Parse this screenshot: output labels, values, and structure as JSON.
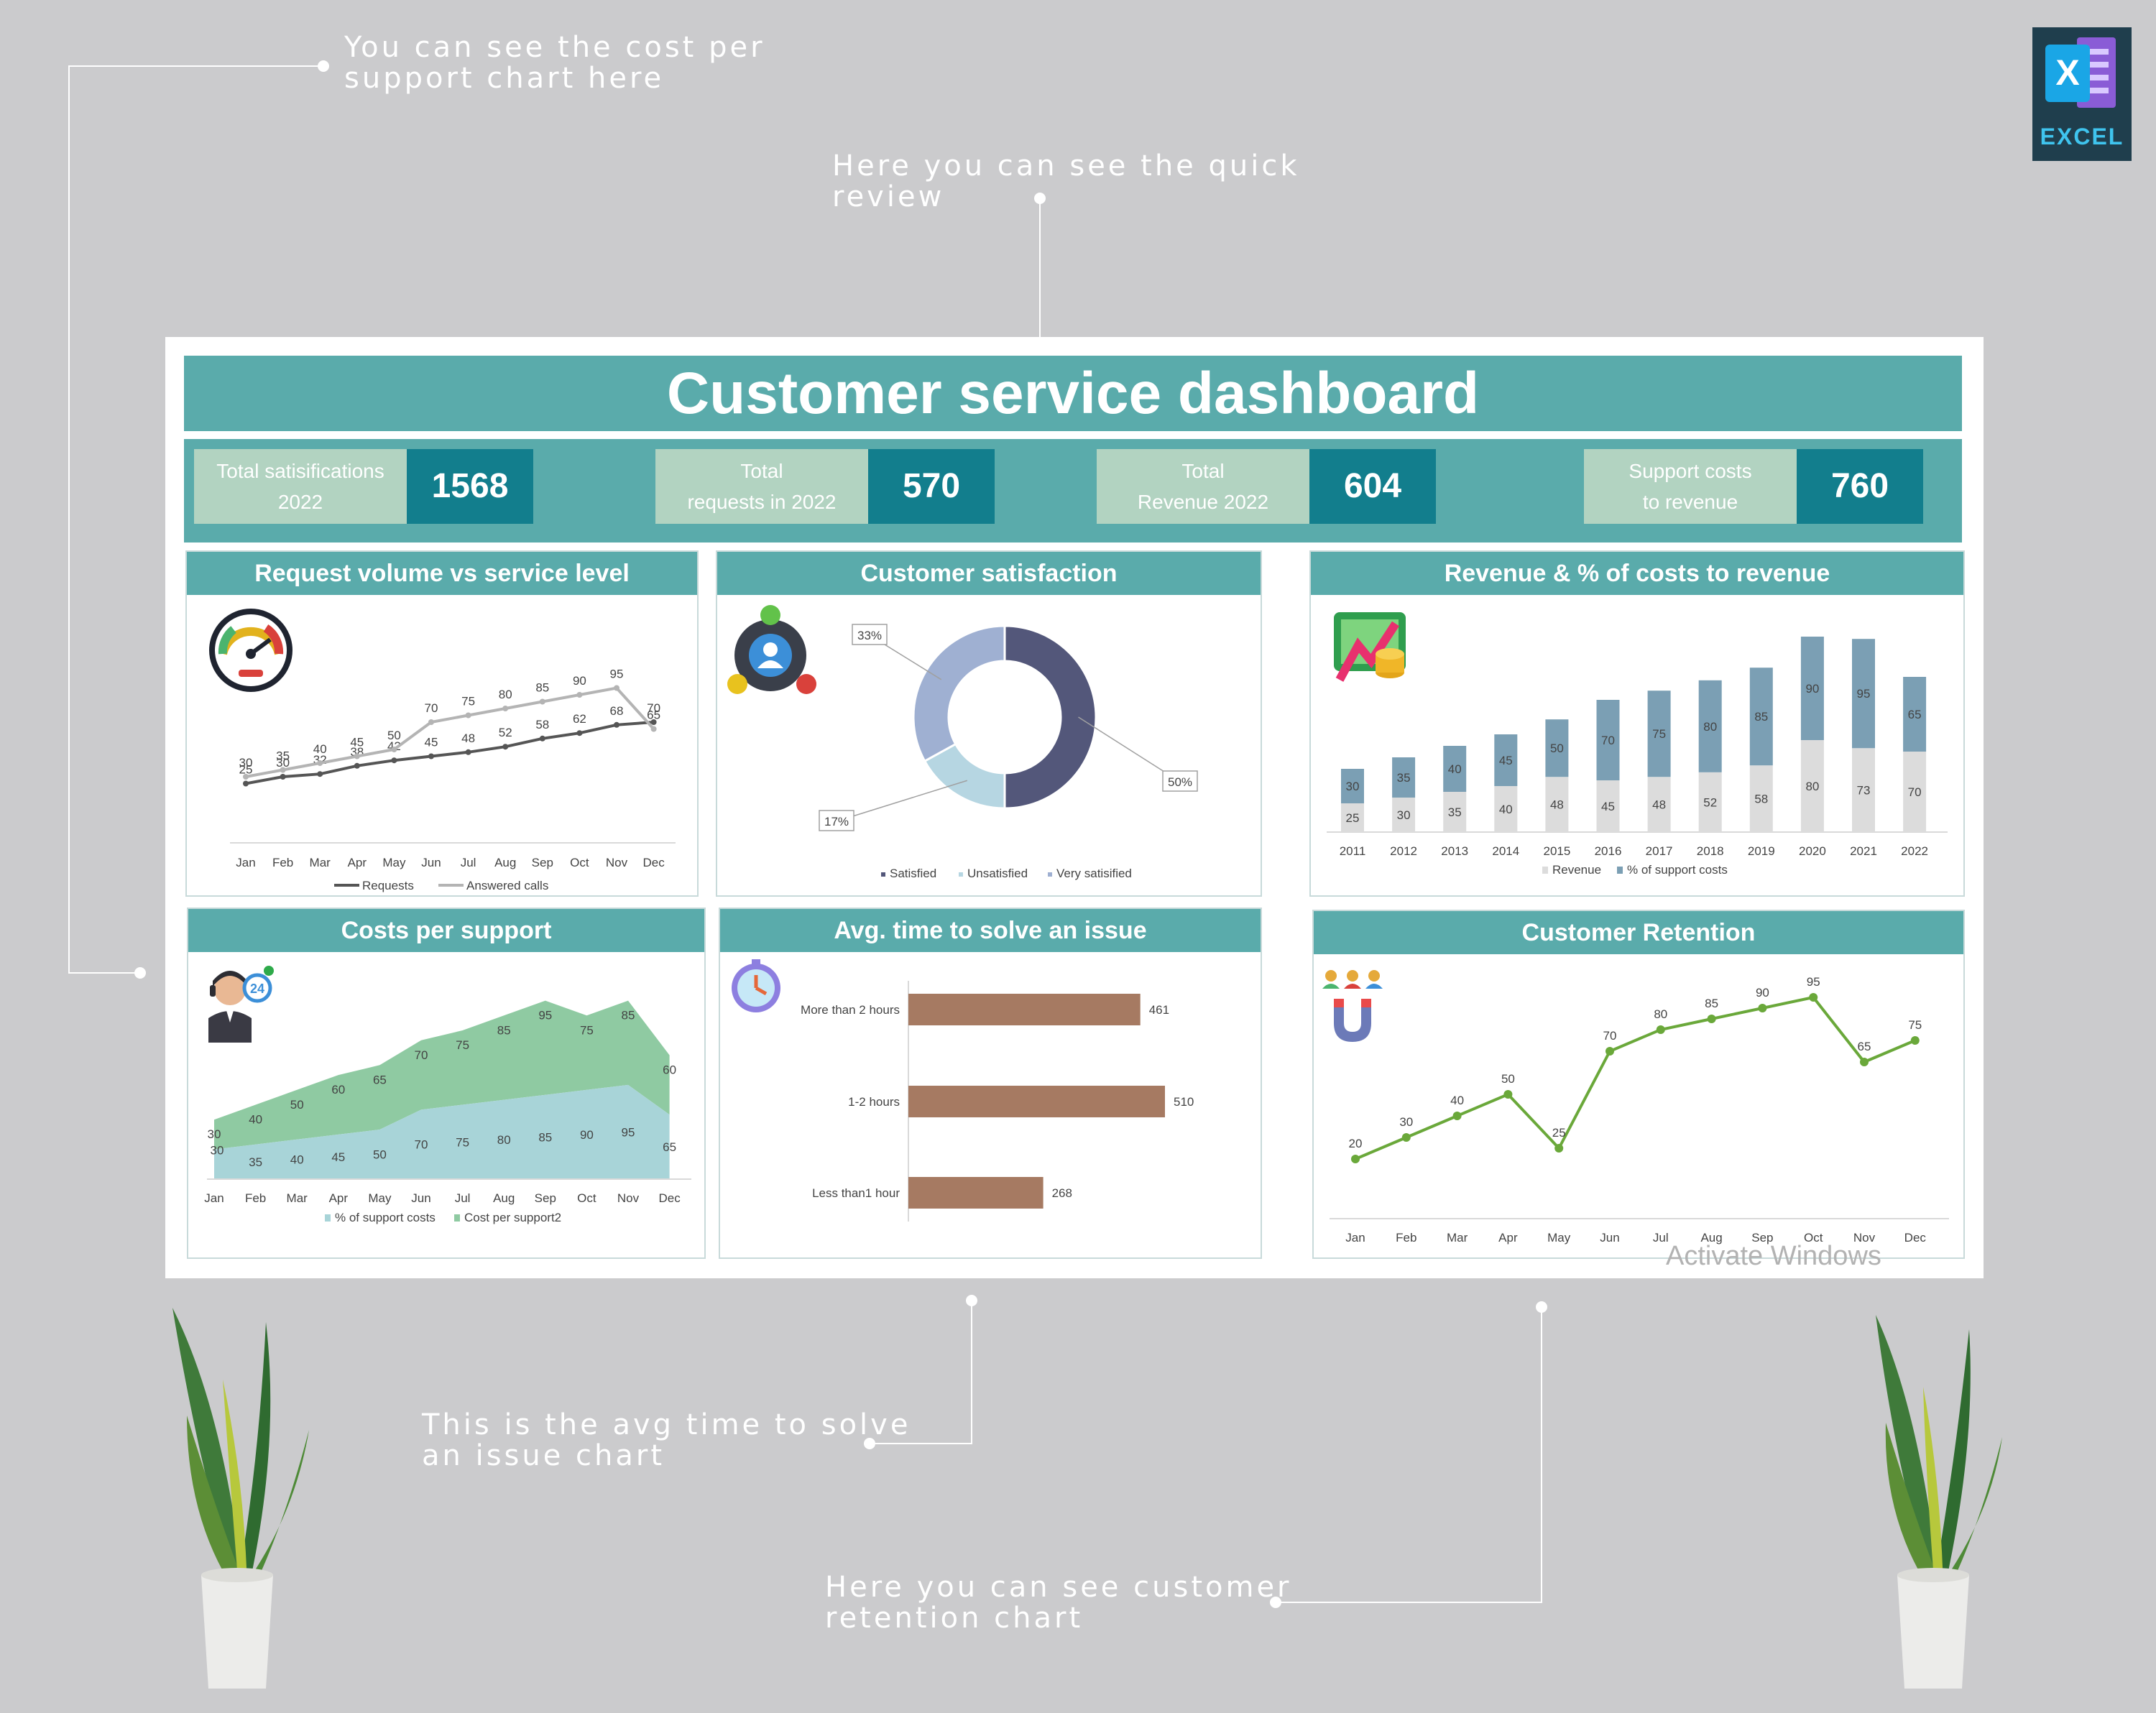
{
  "callouts": {
    "cost_per_support": "You can see the cost per\nsupport chart here",
    "quick_review": "Here you can see the quick\nreview",
    "avg_time": "This is the avg time to solve\nan issue chart",
    "retention": "Here you can see customer\nretention chart"
  },
  "excel_logo": {
    "letter": "X",
    "word": "EXCEL"
  },
  "dashboard": {
    "title": "Customer service dashboard",
    "kpis": [
      {
        "label": "Total satisifications\n2022",
        "value": "1568"
      },
      {
        "label": "Total\nrequests in 2022",
        "value": "570"
      },
      {
        "label": "Total\nRevenue 2022",
        "value": "604"
      },
      {
        "label": "Support costs\nto revenue",
        "value": "760"
      }
    ],
    "panels": {
      "request_volume": "Request volume vs service level",
      "satisfaction": "Customer satisfaction",
      "revenue": "Revenue & % of costs to revenue",
      "costs_support": "Costs per support",
      "avg_time": "Avg. time to solve an issue",
      "retention": "Customer Retention"
    }
  },
  "watermark": "Activate Windows",
  "colors": {
    "teal": "#5aabab",
    "kpi_value_bg": "#127e8d",
    "kpi_label_bg": "#b2d3c1",
    "requests_line": "#555555",
    "answered_line": "#b4b4b4",
    "donut_satisfied": "#53577a",
    "donut_unsatisfied": "#b6d6e2",
    "donut_very": "#9fb0d2",
    "revenue_bar": "#dcdcdc",
    "cost_bar": "#7b9fb4",
    "area_cost": "#8fcaa2",
    "area_pct": "#a8d4d8",
    "hbar": "#a67a62",
    "retention_line": "#6aa83a"
  },
  "chart_data": [
    {
      "type": "line",
      "title": "Request volume vs service level",
      "categories": [
        "Jan",
        "Feb",
        "Mar",
        "Apr",
        "May",
        "Jun",
        "Jul",
        "Aug",
        "Sep",
        "Oct",
        "Nov",
        "Dec"
      ],
      "series": [
        {
          "name": "Requests",
          "values": [
            25,
            30,
            32,
            38,
            42,
            45,
            48,
            52,
            58,
            62,
            68,
            70
          ]
        },
        {
          "name": "Answered calls",
          "values": [
            30,
            35,
            40,
            45,
            50,
            70,
            75,
            80,
            85,
            90,
            95,
            65
          ]
        }
      ],
      "ylim": [
        0,
        100
      ],
      "legend": "bottom"
    },
    {
      "type": "pie",
      "title": "Customer satisfaction",
      "categories": [
        "Satisfied",
        "Unsatisfied",
        "Very satisified"
      ],
      "values": [
        50,
        17,
        33
      ],
      "labels": [
        "50%",
        "17%",
        "33%"
      ],
      "legend": "bottom"
    },
    {
      "type": "bar",
      "title": "Revenue & % of costs to revenue",
      "categories": [
        "2011",
        "2012",
        "2013",
        "2014",
        "2015",
        "2016",
        "2017",
        "2018",
        "2019",
        "2020",
        "2021",
        "2022"
      ],
      "series": [
        {
          "name": "Revenue",
          "values": [
            25,
            30,
            35,
            40,
            48,
            45,
            48,
            52,
            58,
            80,
            73,
            70
          ]
        },
        {
          "name": "% of support costs",
          "values": [
            30,
            35,
            40,
            45,
            50,
            70,
            75,
            80,
            85,
            90,
            95,
            65
          ]
        }
      ],
      "stacked": true,
      "ylim": [
        0,
        180
      ],
      "legend": "bottom"
    },
    {
      "type": "area",
      "title": "Costs per support",
      "categories": [
        "Jan",
        "Feb",
        "Mar",
        "Apr",
        "May",
        "Jun",
        "Jul",
        "Aug",
        "Sep",
        "Oct",
        "Nov",
        "Dec"
      ],
      "series": [
        {
          "name": "% of support costs",
          "values": [
            30,
            35,
            40,
            45,
            50,
            70,
            75,
            80,
            85,
            90,
            95,
            65
          ]
        },
        {
          "name": "Cost per support2",
          "values": [
            30,
            40,
            50,
            60,
            65,
            70,
            75,
            85,
            95,
            75,
            85,
            60
          ]
        }
      ],
      "stacked": true,
      "ylim": [
        0,
        190
      ],
      "legend": "bottom"
    },
    {
      "type": "bar",
      "orientation": "horizontal",
      "title": "Avg. time to solve an issue",
      "categories": [
        "More than 2 hours",
        "1-2 hours",
        "Less than1 hour"
      ],
      "values": [
        461,
        510,
        268
      ],
      "xlim": [
        0,
        600
      ]
    },
    {
      "type": "line",
      "title": "Customer Retention",
      "categories": [
        "Jan",
        "Feb",
        "Mar",
        "Apr",
        "May",
        "Jun",
        "Jul",
        "Aug",
        "Sep",
        "Oct",
        "Nov",
        "Dec"
      ],
      "values": [
        20,
        30,
        40,
        50,
        25,
        70,
        80,
        85,
        90,
        95,
        65,
        75
      ],
      "ylim": [
        0,
        110
      ]
    }
  ]
}
